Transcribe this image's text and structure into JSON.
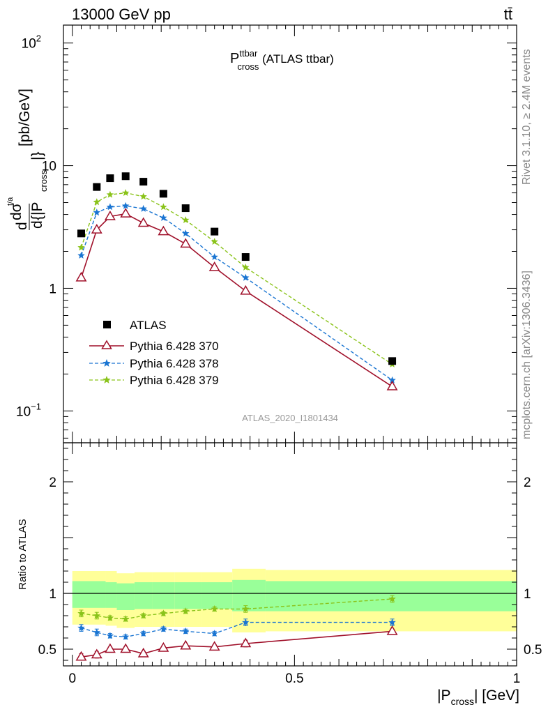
{
  "header": {
    "energy_label": "13000 GeV pp",
    "process_label": "tt̄",
    "side_rivet": "Rivet 3.1.10, ≥ 2.4M events",
    "side_mcplots": "mcplots.cern.ch [arXiv:1306.3436]",
    "analysis_id": "ATLAS_2020_I1801434"
  },
  "chart_data": [
    {
      "type": "scatter",
      "title_main": "P",
      "title_sup": "ttbar",
      "title_sub": "cross",
      "title_suffix": " (ATLAS ttbar)",
      "ylabel": {
        "d1": "d",
        "dsigma": "dσ",
        "sig_sup": "t/a",
        "d2": "d",
        "brace_open": " {|P",
        "sub": "cross",
        "brace_close": "|}",
        "unit": " [pb/GeV]"
      },
      "yscale": "log",
      "xlim": [
        -0.02,
        1.0
      ],
      "ylim": [
        0.055,
        140
      ],
      "yticks": [
        {
          "value": 0.1,
          "base": "10",
          "exp": "−1"
        },
        {
          "value": 1,
          "base": "1",
          "exp": ""
        },
        {
          "value": 10,
          "base": "10",
          "exp": ""
        },
        {
          "value": 100,
          "base": "10",
          "exp": "2"
        }
      ],
      "x": [
        0.02,
        0.055,
        0.085,
        0.12,
        0.16,
        0.205,
        0.255,
        0.32,
        0.39,
        0.72
      ],
      "series": [
        {
          "name": "ATLAS",
          "color": "#000000",
          "marker": "square",
          "line": "none",
          "values": [
            2.8,
            6.7,
            7.9,
            8.2,
            7.4,
            5.9,
            4.5,
            2.9,
            1.8,
            0.255
          ]
        },
        {
          "name": "Pythia 6.428 370",
          "color": "#a0102a",
          "marker": "open-triangle",
          "line": "solid",
          "values": [
            1.22,
            3.0,
            3.85,
            4.05,
            3.4,
            2.9,
            2.3,
            1.48,
            0.95,
            0.158
          ]
        },
        {
          "name": "Pythia 6.428 378",
          "color": "#1a75d2",
          "marker": "star",
          "line": "dashed",
          "values": [
            1.85,
            4.15,
            4.6,
            4.7,
            4.45,
            3.75,
            2.8,
            1.8,
            1.22,
            0.178
          ]
        },
        {
          "name": "Pythia 6.428 379",
          "color": "#8ac31a",
          "marker": "star",
          "line": "dashed",
          "values": [
            2.15,
            5.05,
            5.8,
            6.0,
            5.6,
            4.6,
            3.6,
            2.4,
            1.48,
            0.24
          ]
        }
      ],
      "legend_position": "middle-left"
    },
    {
      "type": "line",
      "ylabel": "Ratio to ATLAS",
      "xlabel_pre": "|P",
      "xlabel_sub": "cross",
      "xlabel_post": "| [GeV]",
      "xlim": [
        -0.02,
        1.0
      ],
      "ylim": [
        0.35,
        2.35
      ],
      "xticks": [
        {
          "value": 0,
          "label": "0"
        },
        {
          "value": 0.5,
          "label": "0.5"
        },
        {
          "value": 1,
          "label": "1"
        }
      ],
      "yticks": [
        {
          "value": 0.5,
          "label": "0.5"
        },
        {
          "value": 1,
          "label": "1"
        },
        {
          "value": 2,
          "label": "2"
        }
      ],
      "bands": {
        "edges": [
          0,
          0.075,
          0.1,
          0.14,
          0.18,
          0.23,
          0.29,
          0.36,
          0.435,
          1.0
        ],
        "stat_color": "#99ff99",
        "syst_color": "#ffff99",
        "inner": [
          [
            0.87,
            1.11
          ],
          [
            0.87,
            1.1
          ],
          [
            0.85,
            1.09
          ],
          [
            0.86,
            1.1
          ],
          [
            0.86,
            1.1
          ],
          [
            0.86,
            1.1
          ],
          [
            0.86,
            1.1
          ],
          [
            0.84,
            1.12
          ],
          [
            0.84,
            1.11
          ]
        ],
        "outer": [
          [
            0.72,
            1.2
          ],
          [
            0.71,
            1.2
          ],
          [
            0.69,
            1.18
          ],
          [
            0.7,
            1.19
          ],
          [
            0.7,
            1.19
          ],
          [
            0.7,
            1.19
          ],
          [
            0.7,
            1.19
          ],
          [
            0.65,
            1.22
          ],
          [
            0.66,
            1.21
          ]
        ]
      },
      "series": [
        {
          "name": "Pythia 6.428 370",
          "values": [
            0.43,
            0.45,
            0.5,
            0.5,
            0.46,
            0.51,
            0.53,
            0.52,
            0.55,
            0.66
          ],
          "errors": [
            0.03,
            0.03,
            0.02,
            0.02,
            0.02,
            0.02,
            0.02,
            0.02,
            0.03,
            0.02
          ]
        },
        {
          "name": "Pythia 6.428 378",
          "values": [
            0.69,
            0.65,
            0.62,
            0.61,
            0.64,
            0.68,
            0.66,
            0.64,
            0.74,
            0.74
          ],
          "errors": [
            0.03,
            0.03,
            0.02,
            0.02,
            0.02,
            0.02,
            0.02,
            0.02,
            0.03,
            0.03
          ]
        },
        {
          "name": "Pythia 6.428 379",
          "values": [
            0.82,
            0.8,
            0.78,
            0.77,
            0.8,
            0.82,
            0.84,
            0.86,
            0.86,
            0.95
          ],
          "errors": [
            0.03,
            0.03,
            0.02,
            0.02,
            0.02,
            0.02,
            0.02,
            0.02,
            0.03,
            0.03
          ]
        }
      ]
    }
  ]
}
